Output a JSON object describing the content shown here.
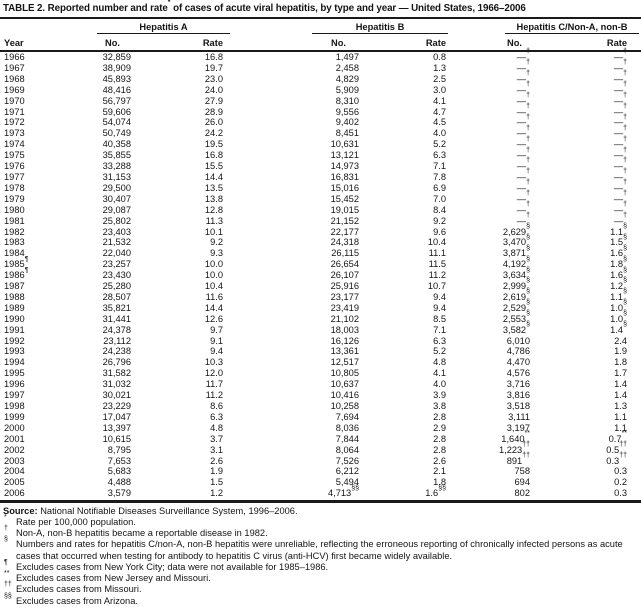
{
  "title": {
    "pre": "TABLE 2. Reported number and rate",
    "sup": "*",
    "post": " of cases of acute viral hepatitis, by type and year — United States, 1966–2006"
  },
  "table": {
    "header": {
      "year": "Year",
      "no_label": "No.",
      "rate_label": "Rate",
      "groups": [
        {
          "label": "Hepatitis A"
        },
        {
          "label": "Hepatitis B"
        },
        {
          "label": "Hepatitis C/Non-A, non-B"
        }
      ]
    },
    "rows": [
      [
        "1966",
        "32,859",
        "16.8",
        "1,497",
        "0.8",
        "—†",
        "—†"
      ],
      [
        "1967",
        "38,909",
        "19.7",
        "2,458",
        "1.3",
        "—†",
        "—†"
      ],
      [
        "1968",
        "45,893",
        "23.0",
        "4,829",
        "2.5",
        "—†",
        "—†"
      ],
      [
        "1969",
        "48,416",
        "24.0",
        "5,909",
        "3.0",
        "—†",
        "—†"
      ],
      [
        "1970",
        "56,797",
        "27.9",
        "8,310",
        "4.1",
        "—†",
        "—†"
      ],
      [
        "1971",
        "59,606",
        "28.9",
        "9,556",
        "4.7",
        "—†",
        "—†"
      ],
      [
        "1972",
        "54,074",
        "26.0",
        "9,402",
        "4.5",
        "—†",
        "—†"
      ],
      [
        "1973",
        "50,749",
        "24.2",
        "8,451",
        "4.0",
        "—†",
        "—†"
      ],
      [
        "1974",
        "40,358",
        "19.5",
        "10,631",
        "5.2",
        "—†",
        "—†"
      ],
      [
        "1975",
        "35,855",
        "16.8",
        "13,121",
        "6.3",
        "—†",
        "—†"
      ],
      [
        "1976",
        "33,288",
        "15.5",
        "14,973",
        "7.1",
        "—†",
        "—†"
      ],
      [
        "1977",
        "31,153",
        "14.4",
        "16,831",
        "7.8",
        "—†",
        "—†"
      ],
      [
        "1978",
        "29,500",
        "13.5",
        "15,016",
        "6.9",
        "—†",
        "—†"
      ],
      [
        "1979",
        "30,407",
        "13.8",
        "15,452",
        "7.0",
        "—†",
        "—†"
      ],
      [
        "1980",
        "29,087",
        "12.8",
        "19,015",
        "8.4",
        "—†",
        "—†"
      ],
      [
        "1981",
        "25,802",
        "11.3",
        "21,152",
        "9.2",
        "—†",
        "—†"
      ],
      [
        "1982",
        "23,403",
        "10.1",
        "22,177",
        "9.6",
        "2,629§",
        "1.1§"
      ],
      [
        "1983",
        "21,532",
        "9.2",
        "24,318",
        "10.4",
        "3,470§",
        "1.5§"
      ],
      [
        "1984",
        "22,040",
        "9.3",
        "26,115",
        "11.1",
        "3,871§",
        "1.6§"
      ],
      [
        "1985¶",
        "23,257",
        "10.0",
        "26,654",
        "11.5",
        "4,192§",
        "1.8§"
      ],
      [
        "1986¶",
        "23,430",
        "10.0",
        "26,107",
        "11.2",
        "3,634§",
        "1.6§"
      ],
      [
        "1987",
        "25,280",
        "10.4",
        "25,916",
        "10.7",
        "2,999§",
        "1.2§"
      ],
      [
        "1988",
        "28,507",
        "11.6",
        "23,177",
        "9.4",
        "2,619§",
        "1.1§"
      ],
      [
        "1989",
        "35,821",
        "14.4",
        "23,419",
        "9.4",
        "2,529§",
        "1.0§"
      ],
      [
        "1990",
        "31,441",
        "12.6",
        "21,102",
        "8.5",
        "2,553§",
        "1.0§"
      ],
      [
        "1991",
        "24,378",
        "9.7",
        "18,003",
        "7.1",
        "3,582§",
        "1.4§"
      ],
      [
        "1992",
        "23,112",
        "9.1",
        "16,126",
        "6.3",
        "6,010",
        "2.4"
      ],
      [
        "1993",
        "24,238",
        "9.4",
        "13,361",
        "5.2",
        "4,786",
        "1.9"
      ],
      [
        "1994",
        "26,796",
        "10.3",
        "12,517",
        "4.8",
        "4,470",
        "1.8"
      ],
      [
        "1995",
        "31,582",
        "12.0",
        "10,805",
        "4.1",
        "4,576",
        "1.7"
      ],
      [
        "1996",
        "31,032",
        "11.7",
        "10,637",
        "4.0",
        "3,716",
        "1.4"
      ],
      [
        "1997",
        "30,021",
        "11.2",
        "10,416",
        "3.9",
        "3,816",
        "1.4"
      ],
      [
        "1998",
        "23,229",
        "8.6",
        "10,258",
        "3.8",
        "3,518",
        "1.3"
      ],
      [
        "1999",
        "17,047",
        "6.3",
        "7,694",
        "2.8",
        "3,111",
        "1.1"
      ],
      [
        "2000",
        "13,397",
        "4.8",
        "8,036",
        "2.9",
        "3,197",
        "1.1"
      ],
      [
        "2001",
        "10,615",
        "3.7",
        "7,844",
        "2.8",
        "1,640**",
        "0.7**"
      ],
      [
        "2002",
        "8,795",
        "3.1",
        "8,064",
        "2.8",
        "1,223††",
        "0.5††"
      ],
      [
        "2003",
        "7,653",
        "2.6",
        "7,526",
        "2.6",
        "891††",
        "0.3††"
      ],
      [
        "2004",
        "5,683",
        "1.9",
        "6,212",
        "2.1",
        "758",
        "0.3"
      ],
      [
        "2005",
        "4,488",
        "1.5",
        "5,494",
        "1.8",
        "694",
        "0.2"
      ],
      [
        "2006",
        "3,579",
        "1.2",
        "4,713§§",
        "1.6§§",
        "802",
        "0.3"
      ]
    ]
  },
  "footer": {
    "source_label": "Source:",
    "source_text": " National Notifiable Diseases Surveillance System, 1996–2006.",
    "footnotes": [
      {
        "marker": "*",
        "text": "Rate per 100,000 population."
      },
      {
        "marker": "†",
        "text": "Non-A, non-B hepatitis became a reportable disease in 1982."
      },
      {
        "marker": "§",
        "text": "Numbers and rates for hepatitis C/non-A, non-B hepatitis were unreliable, reflecting the erroneous reporting of chronically infected persons as acute cases that occurred when testing for antibody to hepatitis C virus (anti-HCV) first became widely available."
      },
      {
        "marker": "¶",
        "text": "Excludes cases from New York City; data were not available for 1985–1986."
      },
      {
        "marker": "**",
        "text": "Excludes cases from New Jersey and Missouri."
      },
      {
        "marker": "††",
        "text": "Excludes cases from Missouri."
      },
      {
        "marker": "§§",
        "text": "Excludes cases from Arizona."
      }
    ]
  }
}
